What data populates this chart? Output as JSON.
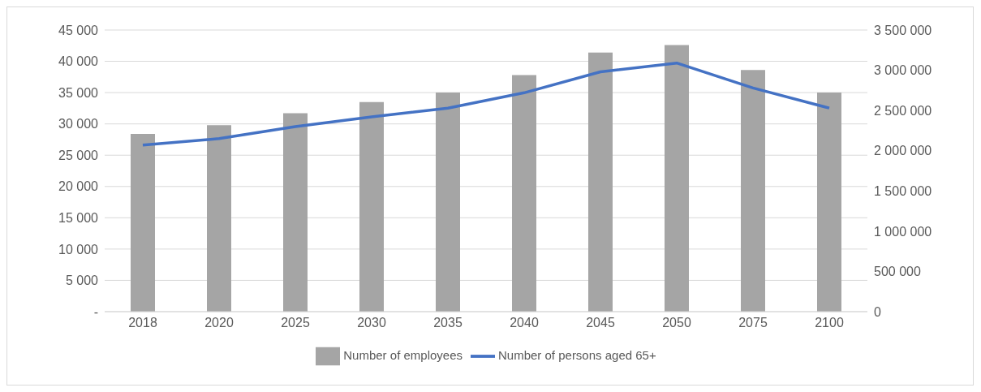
{
  "chart_data": {
    "type": "bar",
    "categories": [
      "2018",
      "2020",
      "2025",
      "2030",
      "2035",
      "2040",
      "2045",
      "2050",
      "2075",
      "2100"
    ],
    "series": [
      {
        "name": "Number of employees",
        "color": "#a5a5a5",
        "values": [
          28400,
          29800,
          31700,
          33500,
          35000,
          37800,
          41400,
          42600,
          38600,
          35000
        ]
      },
      {
        "name": "Number of persons aged 65+",
        "type": "line",
        "axis": "y2",
        "color": "#4472c4",
        "values": [
          2070000,
          2150000,
          2300000,
          2420000,
          2530000,
          2720000,
          2980000,
          3090000,
          2780000,
          2530000
        ]
      }
    ],
    "ylim": [
      0,
      45000
    ],
    "yticks": [
      {
        "value": 0,
        "label": "-"
      },
      {
        "value": 5000,
        "label": "5 000"
      },
      {
        "value": 10000,
        "label": "10 000"
      },
      {
        "value": 15000,
        "label": "15 000"
      },
      {
        "value": 20000,
        "label": "20 000"
      },
      {
        "value": 25000,
        "label": "25 000"
      },
      {
        "value": 30000,
        "label": "30 000"
      },
      {
        "value": 35000,
        "label": "35 000"
      },
      {
        "value": 40000,
        "label": "40 000"
      },
      {
        "value": 45000,
        "label": "45 000"
      }
    ],
    "y2lim": [
      0,
      3500000
    ],
    "y2ticks": [
      0,
      {
        "value": 500000,
        "label": "500 000"
      },
      {
        "value": 1000000,
        "label": "1 000 000"
      },
      {
        "value": 1500000,
        "label": "1 500 000"
      },
      {
        "value": 2000000,
        "label": "2 000 000"
      },
      {
        "value": 2500000,
        "label": "2 500 000"
      },
      {
        "value": 3000000,
        "label": "3 000 000"
      },
      {
        "value": 3500000,
        "label": "3 500 000"
      }
    ],
    "grid": "y",
    "legend": "bottom",
    "marker": "none",
    "line_style": "solid"
  }
}
